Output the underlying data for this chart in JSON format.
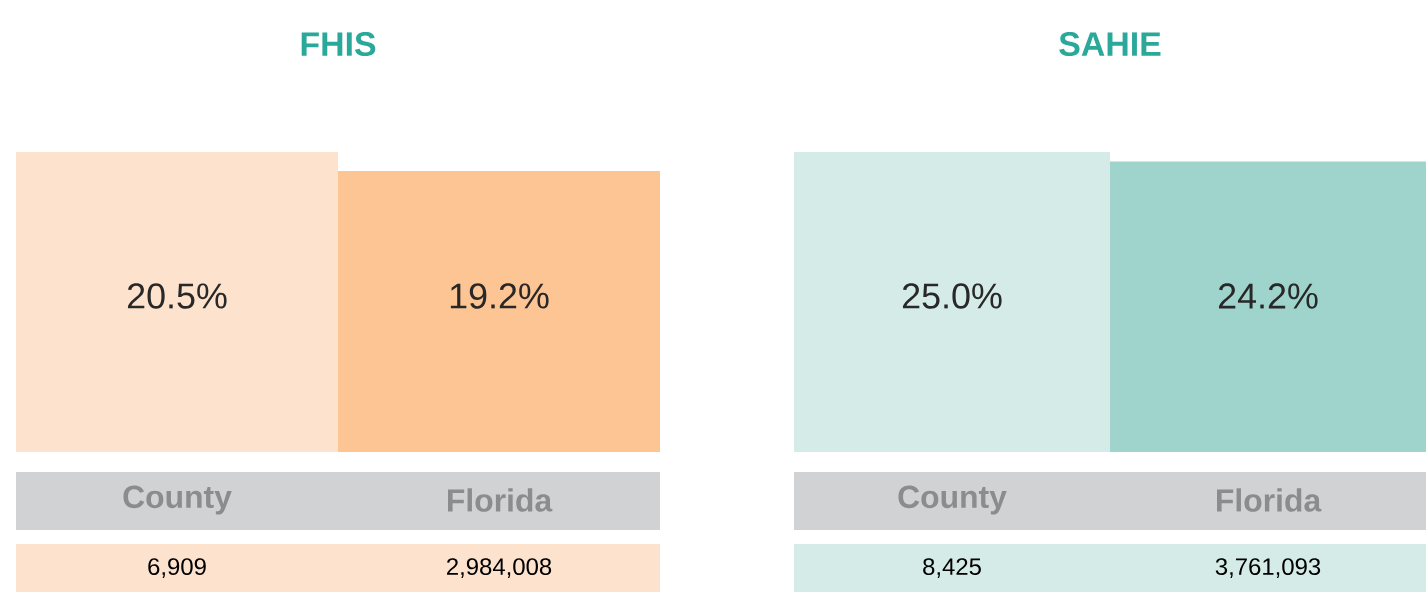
{
  "chart_data": [
    {
      "type": "bar",
      "title": "FHIS",
      "categories": [
        "County",
        "Florida"
      ],
      "values": [
        20.5,
        19.2
      ],
      "colors": [
        "#fde3cd",
        "#fdc494"
      ],
      "value_labels": [
        "20.5%",
        "19.2%"
      ],
      "annotations": [
        "6,909",
        "2,984,008"
      ]
    },
    {
      "type": "bar",
      "title": "SAHIE",
      "categories": [
        "County",
        "Florida"
      ],
      "values": [
        25.0,
        24.2
      ],
      "colors": [
        "#d4ebe8",
        "#9fd4cc"
      ],
      "value_labels": [
        "25.0%",
        "24.2%"
      ],
      "annotations": [
        "8,425",
        "3,761,093"
      ]
    }
  ]
}
